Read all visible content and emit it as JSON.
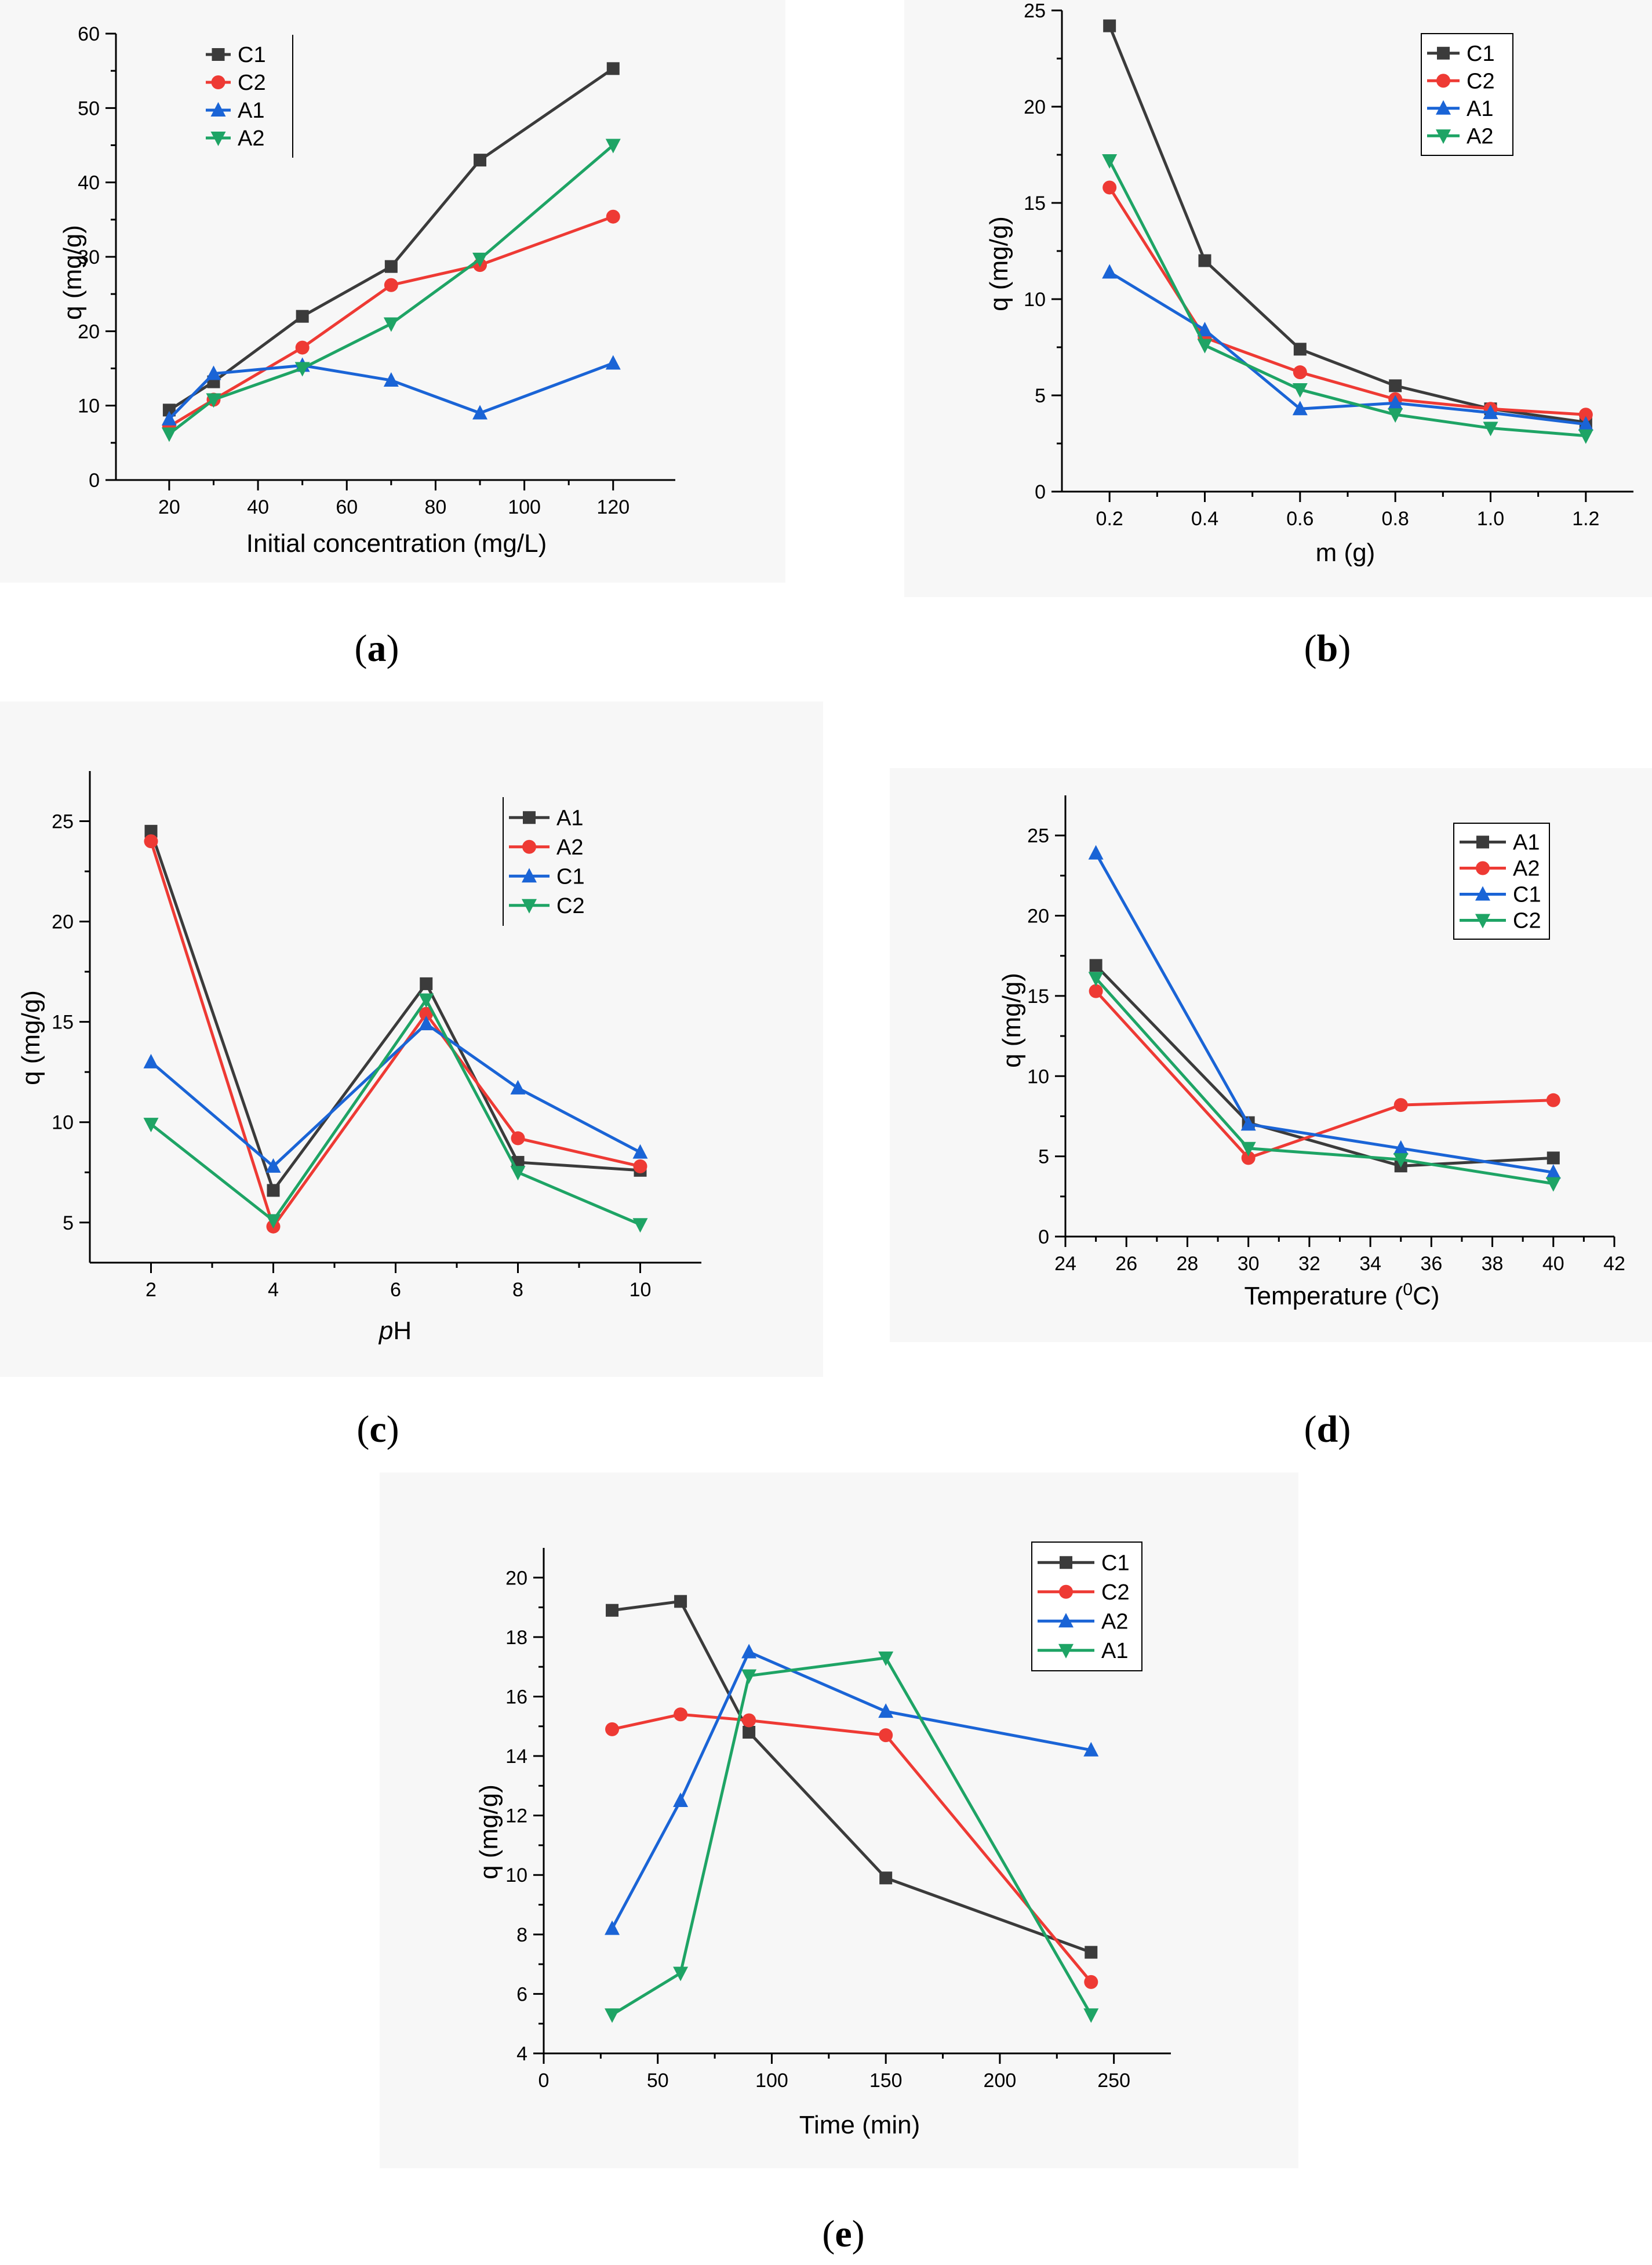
{
  "chart_data": [
    {
      "id": "a",
      "type": "line",
      "caption": "a",
      "xlabel": "Initial concentration (mg/L)",
      "ylabel": "q (mg/g)",
      "xlim": [
        8,
        134
      ],
      "ylim": [
        0,
        60
      ],
      "xticks": [
        20,
        40,
        60,
        80,
        100,
        120
      ],
      "yticks": [
        0,
        10,
        20,
        30,
        40,
        50,
        60
      ],
      "legend": {
        "position": "top-left",
        "box": "bar"
      },
      "series": [
        {
          "name": "C1",
          "color": "#3b3b3b",
          "marker": "square",
          "x": [
            20,
            30,
            50,
            70,
            90,
            120
          ],
          "y": [
            9.4,
            13.2,
            22.0,
            28.7,
            43.0,
            55.3
          ]
        },
        {
          "name": "C2",
          "color": "#ee3a34",
          "marker": "circle",
          "x": [
            20,
            30,
            50,
            70,
            90,
            120
          ],
          "y": [
            7.2,
            10.8,
            17.8,
            26.2,
            28.9,
            35.4
          ]
        },
        {
          "name": "A1",
          "color": "#1a64d6",
          "marker": "triangle-up",
          "x": [
            20,
            30,
            50,
            70,
            90,
            120
          ],
          "y": [
            8.2,
            14.3,
            15.4,
            13.4,
            9.0,
            15.7
          ]
        },
        {
          "name": "A2",
          "color": "#1ea465",
          "marker": "triangle-down",
          "x": [
            20,
            30,
            50,
            70,
            90,
            120
          ],
          "y": [
            6.2,
            10.8,
            15.0,
            21.0,
            29.7,
            45.0
          ]
        }
      ]
    },
    {
      "id": "b",
      "type": "line",
      "caption": "b",
      "xlabel": "m (g)",
      "ylabel": "q (mg/g)",
      "xlim": [
        0.1,
        1.3
      ],
      "ylim": [
        0,
        25
      ],
      "xticks": [
        0.2,
        0.4,
        0.6,
        0.8,
        1.0,
        1.2
      ],
      "xtick_labels": [
        "0.2",
        "0.4",
        "0.6",
        "0.8",
        "1.0",
        "1.2"
      ],
      "yticks": [
        0,
        5,
        10,
        15,
        20,
        25
      ],
      "legend": {
        "position": "top-right",
        "box": "frame"
      },
      "series": [
        {
          "name": "C1",
          "color": "#3b3b3b",
          "marker": "square",
          "x": [
            0.2,
            0.4,
            0.6,
            0.8,
            1.0,
            1.2
          ],
          "y": [
            24.2,
            12.0,
            7.4,
            5.5,
            4.3,
            3.6
          ]
        },
        {
          "name": "C2",
          "color": "#ee3a34",
          "marker": "circle",
          "x": [
            0.2,
            0.4,
            0.6,
            0.8,
            1.0,
            1.2
          ],
          "y": [
            15.8,
            8.0,
            6.2,
            4.8,
            4.3,
            4.0
          ]
        },
        {
          "name": "A1",
          "color": "#1a64d6",
          "marker": "triangle-up",
          "x": [
            0.2,
            0.4,
            0.6,
            0.8,
            1.0,
            1.2
          ],
          "y": [
            11.4,
            8.4,
            4.3,
            4.6,
            4.1,
            3.5
          ]
        },
        {
          "name": "A2",
          "color": "#1ea465",
          "marker": "triangle-down",
          "x": [
            0.2,
            0.4,
            0.6,
            0.8,
            1.0,
            1.2
          ],
          "y": [
            17.2,
            7.6,
            5.3,
            4.0,
            3.3,
            2.9
          ]
        }
      ]
    },
    {
      "id": "c",
      "type": "line",
      "caption": "c",
      "xlabel": "pH",
      "xlabel_italic_prefix": "p",
      "xlabel_rest": "H",
      "ylabel": "q (mg/g)",
      "xlim": [
        1,
        11
      ],
      "ylim": [
        3,
        27.5
      ],
      "xticks": [
        2,
        4,
        6,
        8,
        10
      ],
      "yticks": [
        5,
        10,
        15,
        20,
        25
      ],
      "legend": {
        "position": "top-right",
        "box": "bar"
      },
      "series": [
        {
          "name": "A1",
          "color": "#3b3b3b",
          "marker": "square",
          "x": [
            2,
            4,
            6.5,
            8,
            10
          ],
          "y": [
            24.5,
            6.6,
            16.9,
            8.0,
            7.6
          ]
        },
        {
          "name": "A2",
          "color": "#ee3a34",
          "marker": "circle",
          "x": [
            2,
            4,
            6.5,
            8,
            10
          ],
          "y": [
            24.0,
            4.8,
            15.4,
            9.2,
            7.8
          ]
        },
        {
          "name": "C1",
          "color": "#1a64d6",
          "marker": "triangle-up",
          "x": [
            2,
            4,
            6.5,
            8,
            10
          ],
          "y": [
            13.0,
            7.8,
            14.9,
            11.7,
            8.5
          ]
        },
        {
          "name": "C2",
          "color": "#1ea465",
          "marker": "triangle-down",
          "x": [
            2,
            4,
            6.5,
            8,
            10
          ],
          "y": [
            9.9,
            5.1,
            16.1,
            7.5,
            4.9
          ]
        }
      ]
    },
    {
      "id": "d",
      "type": "line",
      "caption": "d",
      "xlabel": "Temperature (0C)",
      "xlabel_before_sup": "Temperature (",
      "xlabel_sup": "0",
      "xlabel_after_sup": "C)",
      "ylabel": "q (mg/g)",
      "xlim": [
        24,
        42
      ],
      "ylim": [
        0,
        27.5
      ],
      "xticks": [
        24,
        26,
        28,
        30,
        32,
        34,
        36,
        38,
        40,
        42
      ],
      "yticks": [
        0,
        5,
        10,
        15,
        20,
        25
      ],
      "legend": {
        "position": "top-right",
        "box": "frame"
      },
      "series": [
        {
          "name": "A1",
          "color": "#3b3b3b",
          "marker": "square",
          "x": [
            25,
            30,
            35,
            40
          ],
          "y": [
            16.9,
            7.1,
            4.4,
            4.9
          ]
        },
        {
          "name": "A2",
          "color": "#ee3a34",
          "marker": "circle",
          "x": [
            25,
            30,
            35,
            40
          ],
          "y": [
            15.3,
            4.9,
            8.2,
            8.5
          ]
        },
        {
          "name": "C1",
          "color": "#1a64d6",
          "marker": "triangle-up",
          "x": [
            25,
            30,
            35,
            40
          ],
          "y": [
            23.9,
            7.0,
            5.5,
            4.0
          ]
        },
        {
          "name": "C2",
          "color": "#1ea465",
          "marker": "triangle-down",
          "x": [
            25,
            30,
            35,
            40
          ],
          "y": [
            16.1,
            5.5,
            4.8,
            3.3
          ]
        }
      ]
    },
    {
      "id": "e",
      "type": "line",
      "caption": "e",
      "xlabel": "Time (min)",
      "ylabel": "q (mg/g)",
      "xlim": [
        0,
        275
      ],
      "ylim": [
        4,
        21
      ],
      "xticks": [
        0,
        50,
        100,
        150,
        200,
        250
      ],
      "yticks": [
        4,
        6,
        8,
        10,
        12,
        14,
        16,
        18,
        20
      ],
      "legend": {
        "position": "top-right",
        "box": "frame"
      },
      "series": [
        {
          "name": "C1",
          "color": "#3b3b3b",
          "marker": "square",
          "x": [
            30,
            60,
            90,
            150,
            240
          ],
          "y": [
            18.9,
            19.2,
            14.8,
            9.9,
            7.4
          ]
        },
        {
          "name": "C2",
          "color": "#ee3a34",
          "marker": "circle",
          "x": [
            30,
            60,
            90,
            150,
            240
          ],
          "y": [
            14.9,
            15.4,
            15.2,
            14.7,
            6.4
          ]
        },
        {
          "name": "A2",
          "color": "#1a64d6",
          "marker": "triangle-up",
          "x": [
            30,
            60,
            90,
            150,
            240
          ],
          "y": [
            8.2,
            12.5,
            17.5,
            15.5,
            14.2
          ]
        },
        {
          "name": "A1",
          "color": "#1ea465",
          "marker": "triangle-down",
          "x": [
            30,
            60,
            90,
            150,
            240
          ],
          "y": [
            5.3,
            6.7,
            16.7,
            17.3,
            5.3
          ]
        }
      ]
    }
  ]
}
